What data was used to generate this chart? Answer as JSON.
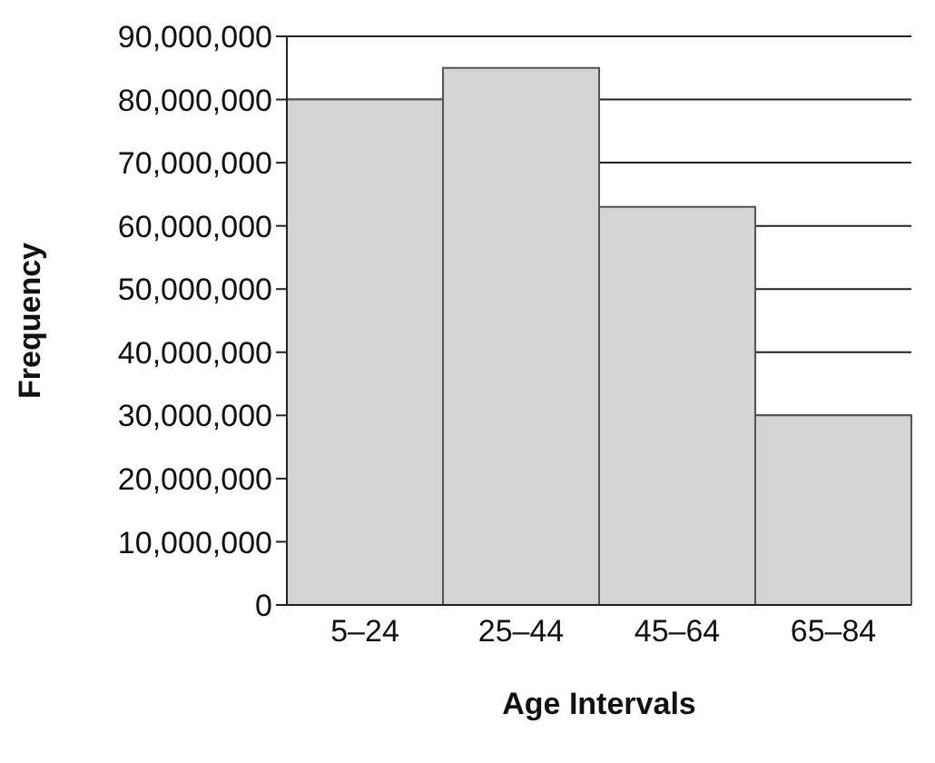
{
  "chart_data": {
    "type": "bar",
    "xlabel": "Age Intervals",
    "ylabel": "Frequency",
    "categories": [
      "5–24",
      "25–44",
      "45–64",
      "65–84"
    ],
    "values": [
      80000000,
      85000000,
      63000000,
      30000000
    ],
    "color": "#d4d4d4",
    "ylim": [
      0,
      90000000
    ],
    "yticks": [
      0,
      {
        "value": 10000000,
        "label": "10,000,000"
      },
      {
        "value": 20000000,
        "label": "20,000,000"
      },
      {
        "value": 30000000,
        "label": "30,000,000"
      },
      {
        "value": 40000000,
        "label": "40,000,000"
      },
      {
        "value": 50000000,
        "label": "50,000,000"
      },
      {
        "value": 60000000,
        "label": "60,000,000"
      },
      {
        "value": 70000000,
        "label": "70,000,000"
      },
      {
        "value": 80000000,
        "label": "80,000,000"
      },
      {
        "value": 90000000,
        "label": "90,000,000"
      }
    ],
    "grid": "y"
  }
}
